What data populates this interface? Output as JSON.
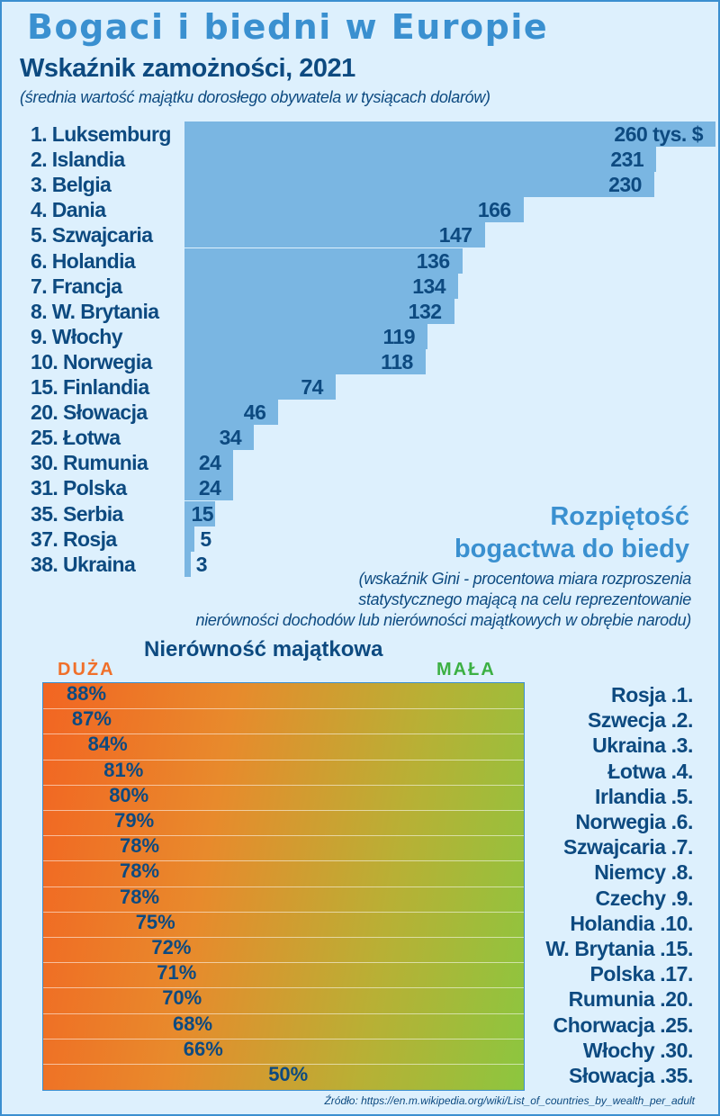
{
  "title": "Bogaci i biedni w Europie",
  "chart_data": [
    {
      "type": "bar",
      "orientation": "horizontal",
      "title": "Wskaźnik zamożności, 2021",
      "subtitle": "(średnia wartość majątku dorosłego obywatela w tysiącach dolarów)",
      "unit_suffix_first": " tys. $",
      "categories": [
        "1. Luksemburg",
        "2. Islandia",
        "3. Belgia",
        "4. Dania",
        "5. Szwajcaria",
        "6. Holandia",
        "7. Francja",
        "8. W. Brytania",
        "9. Włochy",
        "10. Norwegia",
        "15. Finlandia",
        "20. Słowacja",
        "25. Łotwa",
        "30. Rumunia",
        "31. Polska",
        "35. Serbia",
        "37. Rosja",
        "38. Ukraina"
      ],
      "values": [
        260,
        231,
        230,
        166,
        147,
        136,
        134,
        132,
        119,
        118,
        74,
        46,
        34,
        24,
        24,
        15,
        5,
        3
      ],
      "bar_color": "#7ab6e2"
    },
    {
      "type": "bar",
      "title": "Rozpiętość bogactwa do biedy",
      "title_lines": [
        "Rozpiętość",
        "bogactwa do biedy"
      ],
      "note_lines": [
        "(wskaźnik Gini - procentowa miara rozproszenia",
        "statystycznego mającą na celu reprezentowanie",
        "nierówności dochodów lub nierówności majątkowych w obrębie narodu)"
      ],
      "heading": "Nierówność majątkowa",
      "scale_high": "DUŻA",
      "scale_low": "MAŁA",
      "categories": [
        "Rosja .1.",
        "Szwecja .2.",
        "Ukraina .3.",
        "Łotwa .4.",
        "Irlandia .5.",
        "Norwegia .6.",
        "Szwajcaria .7.",
        "Niemcy .8.",
        "Czechy .9.",
        "Holandia .10.",
        "W. Brytania .15.",
        "Polska .17.",
        "Rumunia .20.",
        "Chorwacja .25.",
        "Włochy .30.",
        "Słowacja .35."
      ],
      "values": [
        88,
        87,
        84,
        81,
        80,
        79,
        78,
        78,
        78,
        75,
        72,
        71,
        70,
        68,
        66,
        50
      ],
      "value_suffix": "%",
      "gradient_colors": [
        "#f26522",
        "#8cc63f"
      ]
    }
  ],
  "source": "Źródło: https://en.m.wikipedia.org/wiki/List_of_countries_by_wealth_per_adult"
}
